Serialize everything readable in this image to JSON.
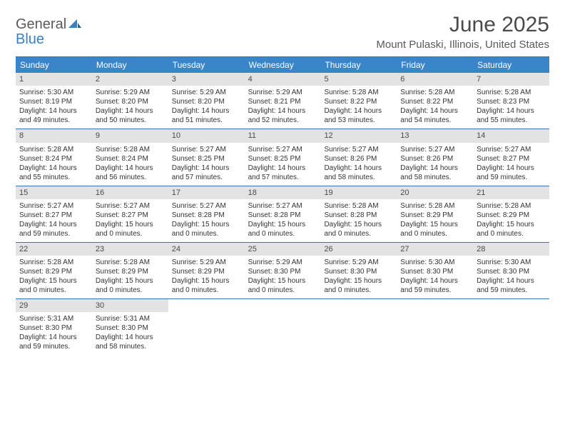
{
  "logo": {
    "general": "General",
    "blue": "Blue"
  },
  "title": "June 2025",
  "location": "Mount Pulaski, Illinois, United States",
  "colors": {
    "header_bg": "#3a85c9",
    "header_text": "#ffffff",
    "border": "#3573b8",
    "daynum_bg": "#e3e3e3",
    "text": "#333333",
    "logo_gray": "#5a5a5a",
    "logo_blue": "#3a7fbf"
  },
  "day_names": [
    "Sunday",
    "Monday",
    "Tuesday",
    "Wednesday",
    "Thursday",
    "Friday",
    "Saturday"
  ],
  "weeks": [
    [
      {
        "n": "1",
        "sr": "5:30 AM",
        "ss": "8:19 PM",
        "dl": "14 hours and 49 minutes."
      },
      {
        "n": "2",
        "sr": "5:29 AM",
        "ss": "8:20 PM",
        "dl": "14 hours and 50 minutes."
      },
      {
        "n": "3",
        "sr": "5:29 AM",
        "ss": "8:20 PM",
        "dl": "14 hours and 51 minutes."
      },
      {
        "n": "4",
        "sr": "5:29 AM",
        "ss": "8:21 PM",
        "dl": "14 hours and 52 minutes."
      },
      {
        "n": "5",
        "sr": "5:28 AM",
        "ss": "8:22 PM",
        "dl": "14 hours and 53 minutes."
      },
      {
        "n": "6",
        "sr": "5:28 AM",
        "ss": "8:22 PM",
        "dl": "14 hours and 54 minutes."
      },
      {
        "n": "7",
        "sr": "5:28 AM",
        "ss": "8:23 PM",
        "dl": "14 hours and 55 minutes."
      }
    ],
    [
      {
        "n": "8",
        "sr": "5:28 AM",
        "ss": "8:24 PM",
        "dl": "14 hours and 55 minutes."
      },
      {
        "n": "9",
        "sr": "5:28 AM",
        "ss": "8:24 PM",
        "dl": "14 hours and 56 minutes."
      },
      {
        "n": "10",
        "sr": "5:27 AM",
        "ss": "8:25 PM",
        "dl": "14 hours and 57 minutes."
      },
      {
        "n": "11",
        "sr": "5:27 AM",
        "ss": "8:25 PM",
        "dl": "14 hours and 57 minutes."
      },
      {
        "n": "12",
        "sr": "5:27 AM",
        "ss": "8:26 PM",
        "dl": "14 hours and 58 minutes."
      },
      {
        "n": "13",
        "sr": "5:27 AM",
        "ss": "8:26 PM",
        "dl": "14 hours and 58 minutes."
      },
      {
        "n": "14",
        "sr": "5:27 AM",
        "ss": "8:27 PM",
        "dl": "14 hours and 59 minutes."
      }
    ],
    [
      {
        "n": "15",
        "sr": "5:27 AM",
        "ss": "8:27 PM",
        "dl": "14 hours and 59 minutes."
      },
      {
        "n": "16",
        "sr": "5:27 AM",
        "ss": "8:27 PM",
        "dl": "15 hours and 0 minutes."
      },
      {
        "n": "17",
        "sr": "5:27 AM",
        "ss": "8:28 PM",
        "dl": "15 hours and 0 minutes."
      },
      {
        "n": "18",
        "sr": "5:27 AM",
        "ss": "8:28 PM",
        "dl": "15 hours and 0 minutes."
      },
      {
        "n": "19",
        "sr": "5:28 AM",
        "ss": "8:28 PM",
        "dl": "15 hours and 0 minutes."
      },
      {
        "n": "20",
        "sr": "5:28 AM",
        "ss": "8:29 PM",
        "dl": "15 hours and 0 minutes."
      },
      {
        "n": "21",
        "sr": "5:28 AM",
        "ss": "8:29 PM",
        "dl": "15 hours and 0 minutes."
      }
    ],
    [
      {
        "n": "22",
        "sr": "5:28 AM",
        "ss": "8:29 PM",
        "dl": "15 hours and 0 minutes."
      },
      {
        "n": "23",
        "sr": "5:28 AM",
        "ss": "8:29 PM",
        "dl": "15 hours and 0 minutes."
      },
      {
        "n": "24",
        "sr": "5:29 AM",
        "ss": "8:29 PM",
        "dl": "15 hours and 0 minutes."
      },
      {
        "n": "25",
        "sr": "5:29 AM",
        "ss": "8:30 PM",
        "dl": "15 hours and 0 minutes."
      },
      {
        "n": "26",
        "sr": "5:29 AM",
        "ss": "8:30 PM",
        "dl": "15 hours and 0 minutes."
      },
      {
        "n": "27",
        "sr": "5:30 AM",
        "ss": "8:30 PM",
        "dl": "14 hours and 59 minutes."
      },
      {
        "n": "28",
        "sr": "5:30 AM",
        "ss": "8:30 PM",
        "dl": "14 hours and 59 minutes."
      }
    ],
    [
      {
        "n": "29",
        "sr": "5:31 AM",
        "ss": "8:30 PM",
        "dl": "14 hours and 59 minutes."
      },
      {
        "n": "30",
        "sr": "5:31 AM",
        "ss": "8:30 PM",
        "dl": "14 hours and 58 minutes."
      },
      null,
      null,
      null,
      null,
      null
    ]
  ],
  "labels": {
    "sunrise": "Sunrise: ",
    "sunset": "Sunset: ",
    "daylight": "Daylight: "
  }
}
